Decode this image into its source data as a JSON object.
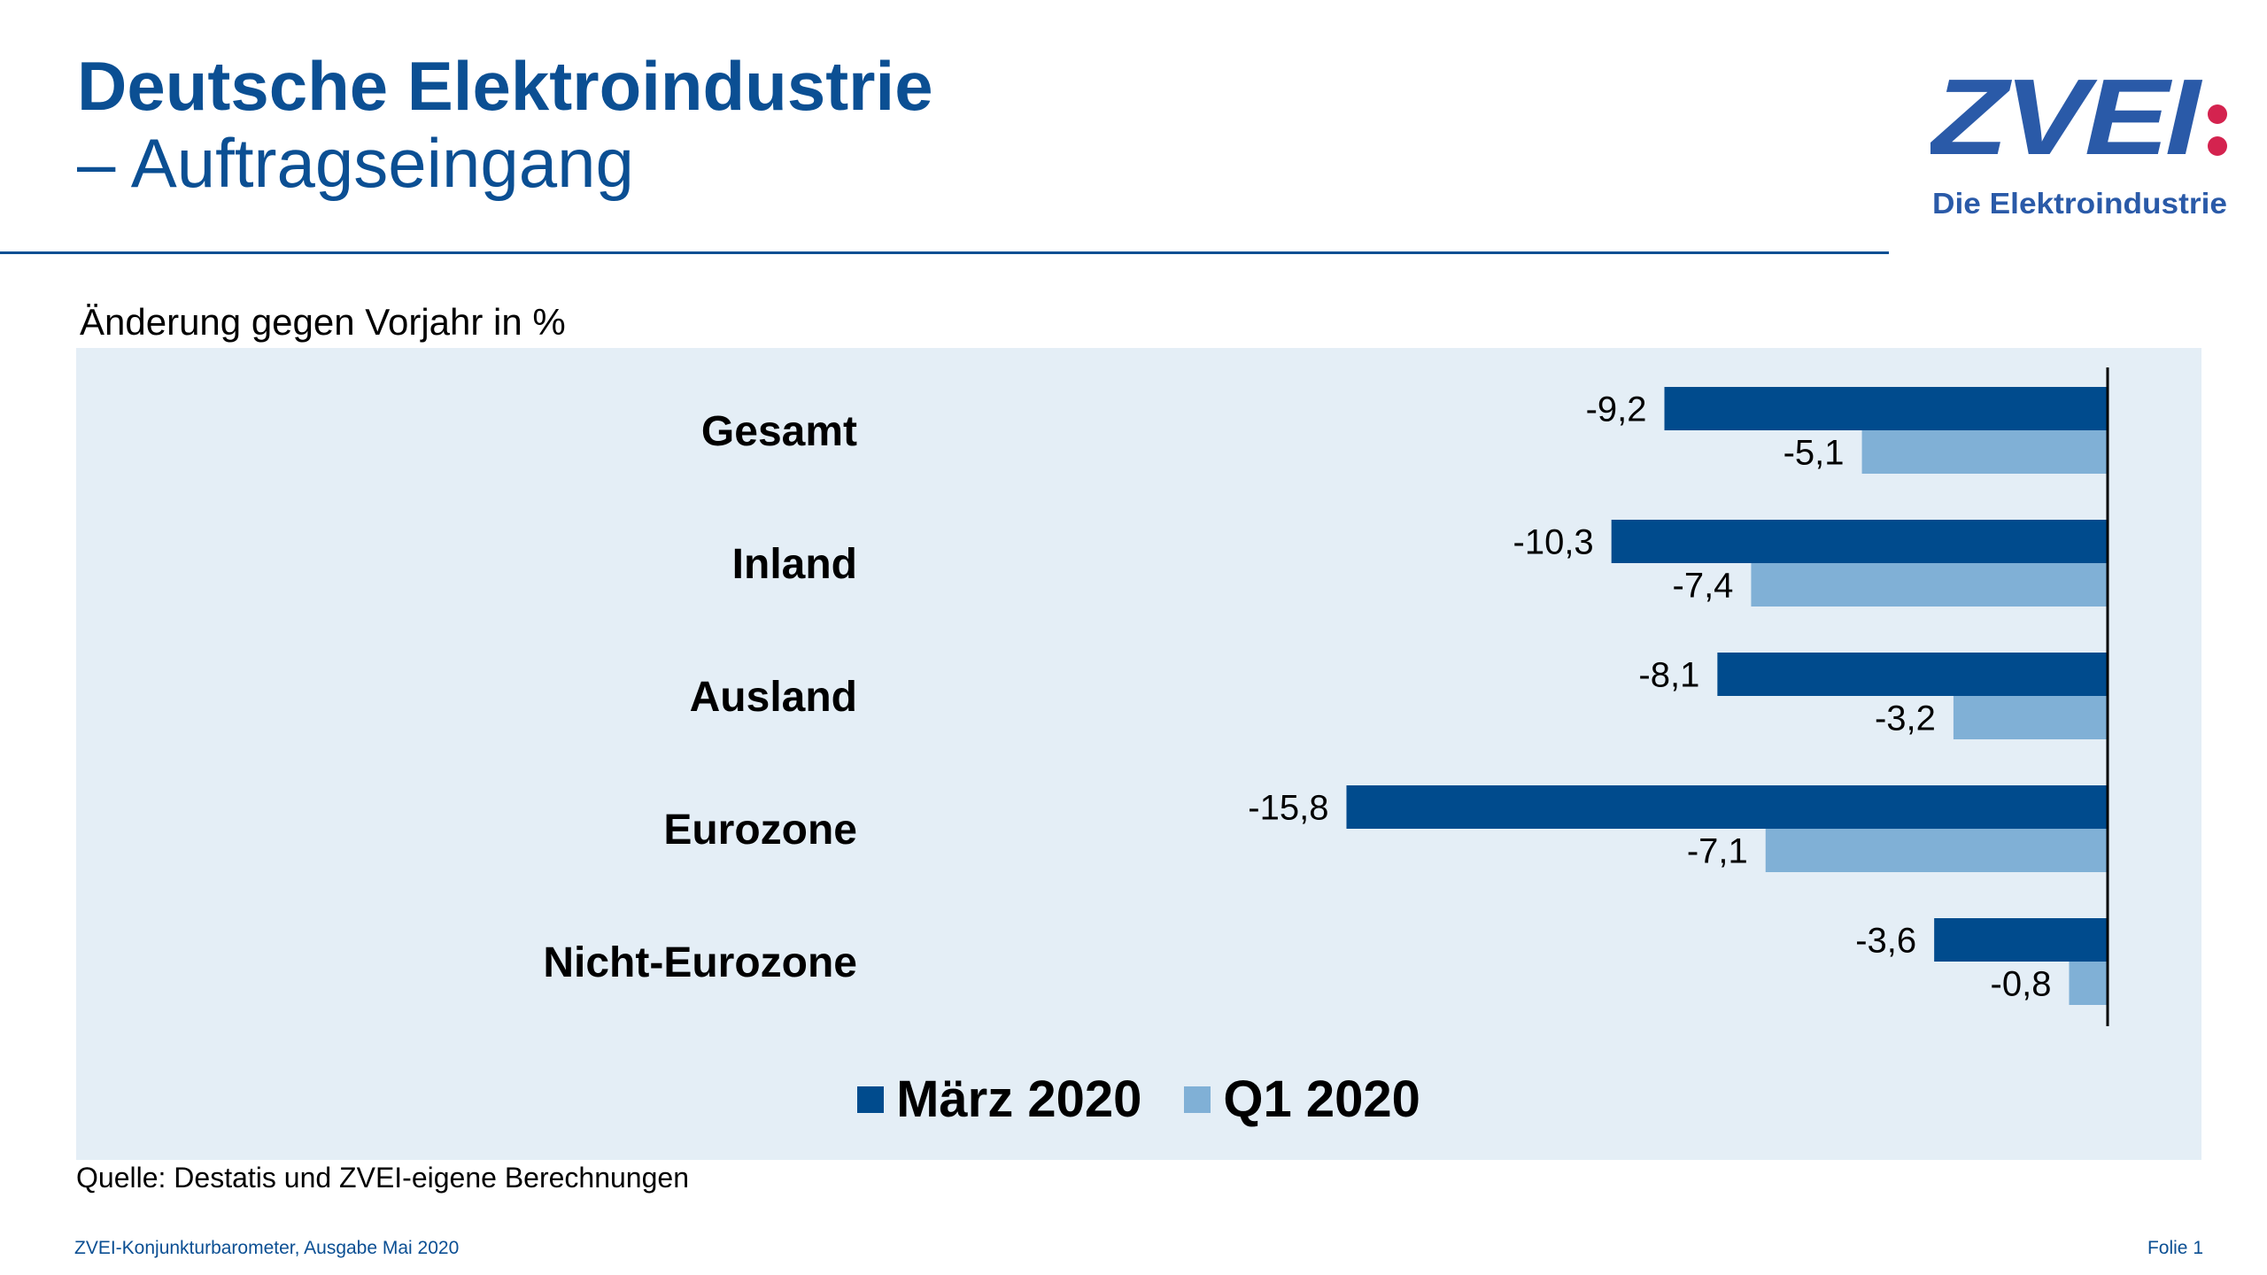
{
  "header": {
    "title_main": "Deutsche Elektroindustrie",
    "title_sub": "– Auftragseingang"
  },
  "logo": {
    "brand": "ZVEI",
    "tagline": "Die Elektroindustrie",
    "brand_color": "#2a5aa8",
    "dot_color": "#d4234f"
  },
  "chart_title": "Änderung gegen Vorjahr in %",
  "chart_data": {
    "type": "bar",
    "orientation": "horizontal",
    "categories": [
      "Gesamt",
      "Inland",
      "Ausland",
      "Eurozone",
      "Nicht-Eurozone"
    ],
    "series": [
      {
        "name": "März 2020",
        "color": "#004b8d",
        "values": [
          -9.2,
          -10.3,
          -8.1,
          -15.8,
          -3.6
        ],
        "labels": [
          "-9,2",
          "-10,3",
          "-8,1",
          "-15,8",
          "-3,6"
        ]
      },
      {
        "name": "Q1 2020",
        "color": "#80b0d6",
        "values": [
          -5.1,
          -7.4,
          -3.2,
          -7.1,
          -0.8
        ],
        "labels": [
          "-5,1",
          "-7,4",
          "-3,2",
          "-7,1",
          "-0,8"
        ]
      }
    ],
    "legend_position": "bottom",
    "grid": false
  },
  "source": "Quelle: Destatis und ZVEI-eigene Berechnungen",
  "footer": {
    "left": "ZVEI-Konjunkturbarometer, Ausgabe Mai 2020",
    "right": "Folie 1"
  }
}
